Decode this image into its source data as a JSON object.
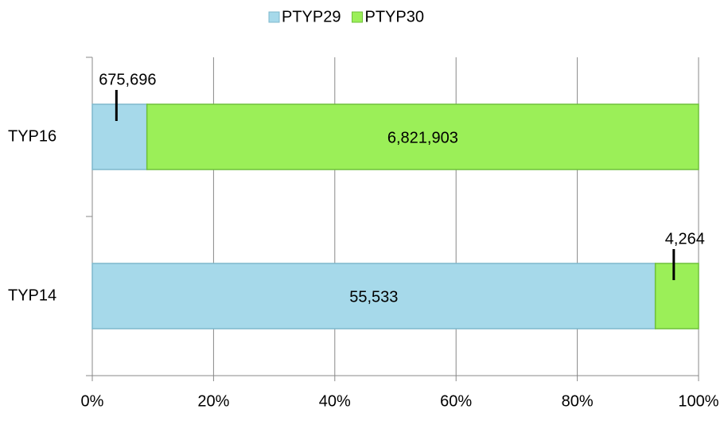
{
  "chart_data": {
    "type": "bar",
    "orientation": "horizontal",
    "stack": "percent",
    "categories": [
      "TYP16",
      "TYP14"
    ],
    "series": [
      {
        "name": "PTYP29",
        "color": "#a6d9ea",
        "values": [
          675696,
          55533
        ],
        "value_labels": [
          "675,696",
          "55,533"
        ]
      },
      {
        "name": "PTYP30",
        "color": "#9bef58",
        "values": [
          6821903,
          4264
        ],
        "value_labels": [
          "6,821,903",
          "4,264"
        ]
      }
    ],
    "xlim": [
      0,
      100
    ],
    "xticks": [
      {
        "value": 0,
        "label": "0%"
      },
      {
        "value": 20,
        "label": "20%"
      },
      {
        "value": 40,
        "label": "40%"
      },
      {
        "value": 60,
        "label": "60%"
      },
      {
        "value": 80,
        "label": "80%"
      },
      {
        "value": 100,
        "label": "100%"
      }
    ],
    "grid": true,
    "legend": "top"
  }
}
